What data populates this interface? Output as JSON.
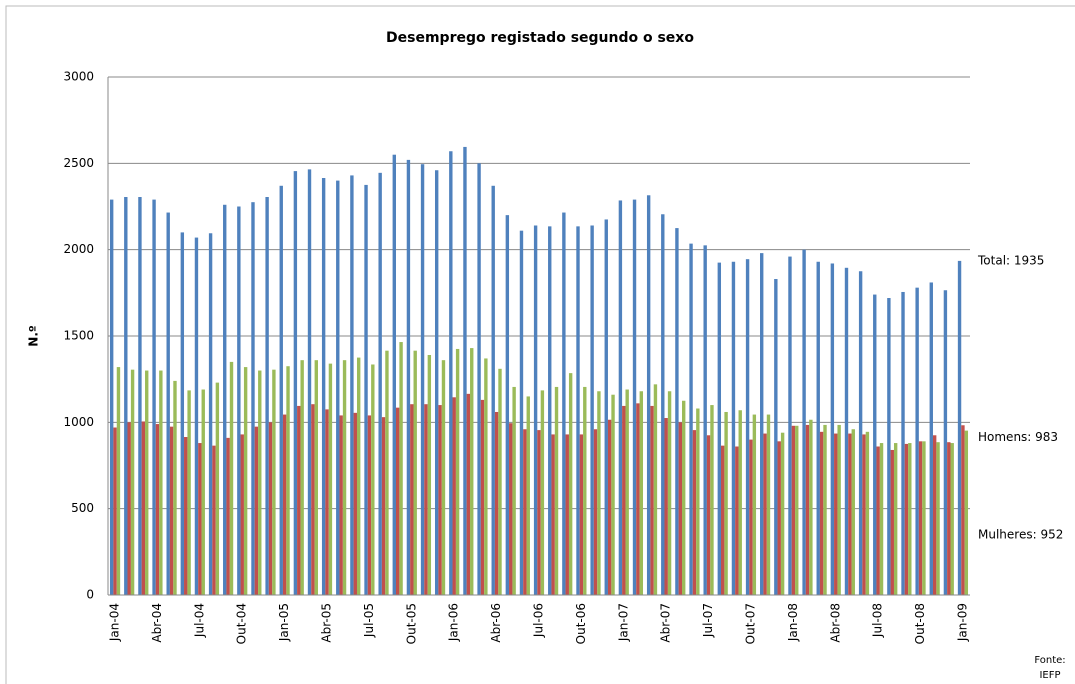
{
  "chart_data": {
    "type": "bar",
    "title": "Desemprego registado segundo o sexo",
    "ylabel": "N.º",
    "categories": [
      "Jan-04",
      null,
      null,
      "Abr-04",
      null,
      null,
      "Jul-04",
      null,
      null,
      "Out-04",
      null,
      null,
      "Jan-05",
      null,
      null,
      "Abr-05",
      null,
      null,
      "Jul-05",
      null,
      null,
      "Out-05",
      null,
      null,
      "Jan-06",
      null,
      null,
      "Abr-06",
      null,
      null,
      "Jul-06",
      null,
      null,
      "Out-06",
      null,
      null,
      "Jan-07",
      null,
      null,
      "Abr-07",
      null,
      null,
      "Jul-07",
      null,
      null,
      "Out-07",
      null,
      null,
      "Jan-08",
      null,
      null,
      "Abr-08",
      null,
      null,
      "Jul-08",
      null,
      null,
      "Out-08",
      null,
      null,
      "Jan-09"
    ],
    "series": [
      {
        "name": "Total",
        "color": "#4f81bd",
        "values": [
          2290,
          2305,
          2305,
          2290,
          2215,
          2100,
          2070,
          2095,
          2260,
          2250,
          2275,
          2305,
          2370,
          2455,
          2465,
          2415,
          2400,
          2430,
          2375,
          2445,
          2550,
          2520,
          2495,
          2460,
          2570,
          2595,
          2500,
          2370,
          2200,
          2110,
          2140,
          2135,
          2215,
          2135,
          2140,
          2175,
          2285,
          2290,
          2315,
          2205,
          2125,
          2035,
          2025,
          1925,
          1930,
          1945,
          1980,
          1830,
          1960,
          2000,
          1930,
          1920,
          1895,
          1875,
          1740,
          1720,
          1755,
          1780,
          1810,
          1765,
          1935
        ]
      },
      {
        "name": "Homens",
        "color": "#c0504d",
        "values": [
          970,
          1000,
          1005,
          990,
          975,
          915,
          880,
          865,
          910,
          930,
          975,
          1000,
          1045,
          1095,
          1105,
          1075,
          1040,
          1055,
          1040,
          1030,
          1085,
          1105,
          1105,
          1100,
          1145,
          1165,
          1130,
          1060,
          995,
          960,
          955,
          930,
          930,
          930,
          960,
          1015,
          1095,
          1110,
          1095,
          1025,
          1000,
          955,
          925,
          865,
          860,
          900,
          935,
          890,
          980,
          985,
          945,
          935,
          935,
          930,
          860,
          840,
          875,
          890,
          925,
          885,
          983
        ]
      },
      {
        "name": "Mulheres",
        "color": "#9bbb59",
        "values": [
          1320,
          1305,
          1300,
          1300,
          1240,
          1185,
          1190,
          1230,
          1350,
          1320,
          1300,
          1305,
          1325,
          1360,
          1360,
          1340,
          1360,
          1375,
          1335,
          1415,
          1465,
          1415,
          1390,
          1360,
          1425,
          1430,
          1370,
          1310,
          1205,
          1150,
          1185,
          1205,
          1285,
          1205,
          1180,
          1160,
          1190,
          1180,
          1220,
          1180,
          1125,
          1080,
          1100,
          1060,
          1070,
          1045,
          1045,
          940,
          980,
          1015,
          985,
          985,
          960,
          945,
          880,
          880,
          880,
          890,
          885,
          880,
          952
        ]
      }
    ],
    "annotations": [
      "Total: 1935",
      "Homens: 983",
      "Mulheres: 952"
    ],
    "source": [
      "Fonte:",
      "IEFP"
    ],
    "ylim": [
      0,
      3000
    ],
    "yticks": [
      0,
      500,
      1000,
      1500,
      2000,
      2500,
      3000
    ],
    "grid": true
  }
}
